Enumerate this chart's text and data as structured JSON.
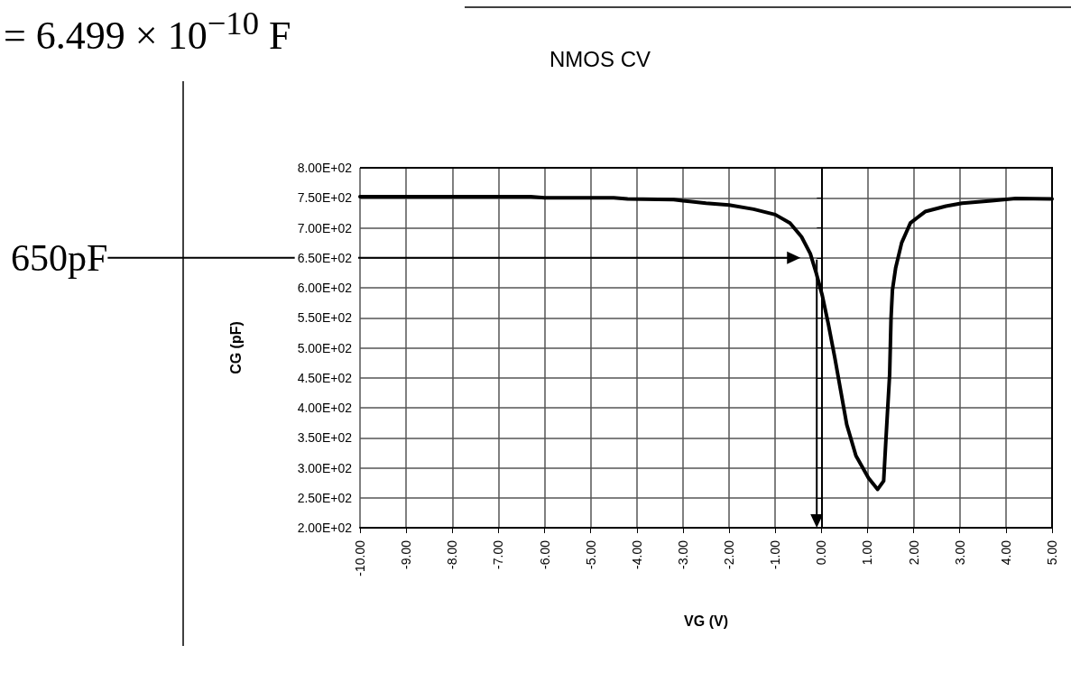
{
  "chart_data": {
    "type": "line",
    "title": "NMOS CV",
    "xlabel": "VG (V)",
    "ylabel": "CG (pF)",
    "annotations": [
      "= 6.499 × 10$^{−10}$ F"
    ],
    "ref_lines": [
      {
        "axis": "y",
        "value": 650,
        "label": "650pF",
        "color": "#000000",
        "line_style": "solid"
      },
      {
        "axis": "x",
        "value": -0.1,
        "color": "#000000",
        "line_style": "solid"
      }
    ],
    "x": [
      -10,
      -8,
      -6.3,
      -6,
      -4.5,
      -4.2,
      -3.2,
      -3.0,
      -2.5,
      -2,
      -1.47,
      -1,
      -0.68,
      -0.43,
      -0.24,
      -0.11,
      0.02,
      0.15,
      0.29,
      0.42,
      0.55,
      0.75,
      1.02,
      1.22,
      1.35,
      1.41,
      1.48,
      1.51,
      1.54,
      1.61,
      1.74,
      1.93,
      2.25,
      2.7,
      3.05,
      3.69,
      4.21,
      5
    ],
    "series": [
      {
        "color": "#000000",
        "values": [
          752,
          752,
          752,
          750,
          750,
          748,
          747,
          745,
          741,
          738,
          731,
          722,
          708,
          685,
          657,
          624,
          587,
          540,
          484,
          428,
          372,
          320,
          283,
          264,
          278,
          362,
          456,
          549,
          596,
          633,
          675,
          708,
          727,
          736,
          741,
          745,
          749,
          748
        ]
      }
    ],
    "xlim": [
      -10,
      5
    ],
    "xticks": [
      {
        "value": -10,
        "label": "-10.00"
      },
      {
        "value": -9,
        "label": "-9.00"
      },
      {
        "value": -8,
        "label": "-8.00"
      },
      {
        "value": -7,
        "label": "-7.00"
      },
      {
        "value": -6,
        "label": "-6.00"
      },
      {
        "value": -5,
        "label": "-5.00"
      },
      {
        "value": -4,
        "label": "-4.00"
      },
      {
        "value": -3,
        "label": "-3.00"
      },
      {
        "value": -2,
        "label": "-2.00"
      },
      {
        "value": -1,
        "label": "-1.00"
      },
      {
        "value": 0,
        "label": "0.00"
      },
      {
        "value": 1,
        "label": "1.00"
      },
      {
        "value": 2,
        "label": "2.00"
      },
      {
        "value": 3,
        "label": "3.00"
      },
      {
        "value": 4,
        "label": "4.00"
      },
      {
        "value": 5,
        "label": "5.00"
      }
    ],
    "ylim": [
      200,
      800
    ],
    "yticks": [
      {
        "value": 200,
        "label": "2.00E+02"
      },
      {
        "value": 250,
        "label": "2.50E+02"
      },
      {
        "value": 300,
        "label": "3.00E+02"
      },
      {
        "value": 350,
        "label": "3.50E+02"
      },
      {
        "value": 400,
        "label": "4.00E+02"
      },
      {
        "value": 450,
        "label": "4.50E+02"
      },
      {
        "value": 500,
        "label": "5.00E+02"
      },
      {
        "value": 550,
        "label": "5.50E+02"
      },
      {
        "value": 600,
        "label": "6.00E+02"
      },
      {
        "value": 650,
        "label": "6.50E+02"
      },
      {
        "value": 700,
        "label": "7.00E+02"
      },
      {
        "value": 750,
        "label": "7.50E+02"
      },
      {
        "value": 800,
        "label": "8.00E+02"
      }
    ],
    "grid": true,
    "marker": "none",
    "line_style": "solid"
  }
}
